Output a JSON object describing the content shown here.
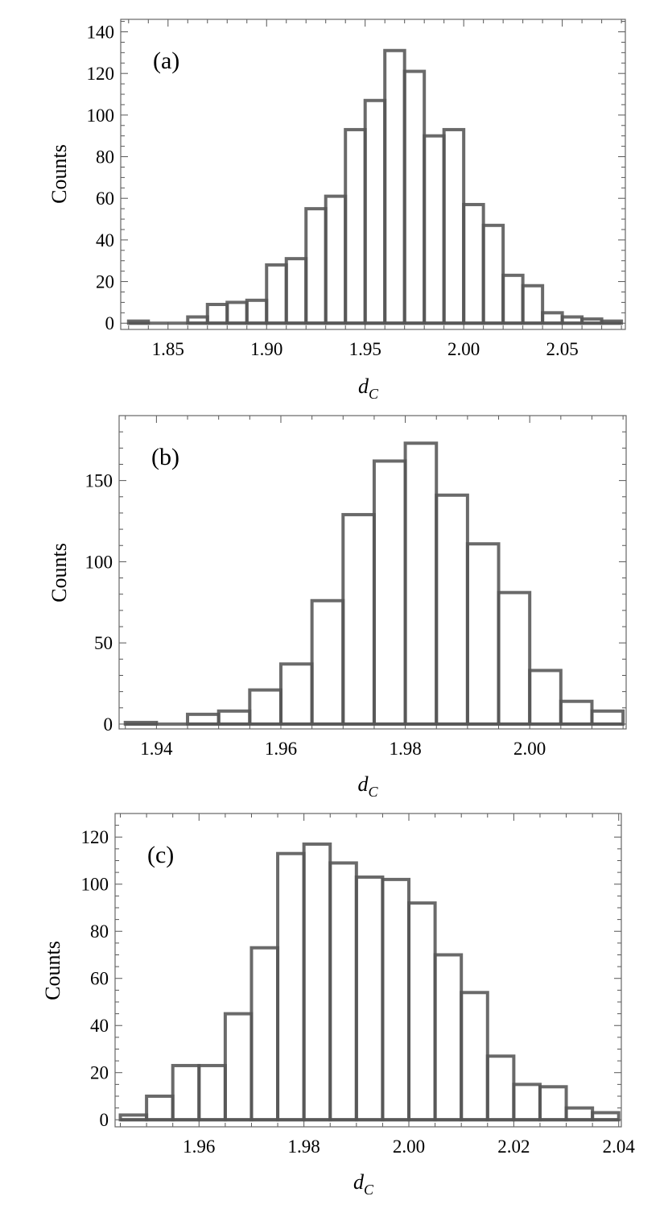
{
  "chart_data": [
    {
      "type": "bar",
      "panel_label": "(a)",
      "ylabel": "Counts",
      "xlabel": "d",
      "xlabel_sub": "C",
      "xlim": [
        1.826,
        2.082
      ],
      "ylim": [
        -3,
        146
      ],
      "xticks": [
        1.85,
        1.9,
        1.95,
        2.0,
        2.05
      ],
      "xtick_labels": [
        "1.85",
        "1.90",
        "1.95",
        "2.00",
        "2.05"
      ],
      "xtick_minor_step": 0.01,
      "yticks": [
        0,
        20,
        40,
        60,
        80,
        100,
        120,
        140
      ],
      "ytick_labels": [
        "0",
        "20",
        "40",
        "60",
        "80",
        "100",
        "120",
        "140"
      ],
      "ytick_minor_step": 5,
      "bin_width": 0.01,
      "bins": [
        {
          "start": 1.83,
          "value": 1
        },
        {
          "start": 1.86,
          "value": 3
        },
        {
          "start": 1.87,
          "value": 9
        },
        {
          "start": 1.88,
          "value": 10
        },
        {
          "start": 1.89,
          "value": 11
        },
        {
          "start": 1.9,
          "value": 28
        },
        {
          "start": 1.91,
          "value": 31
        },
        {
          "start": 1.92,
          "value": 55
        },
        {
          "start": 1.93,
          "value": 61
        },
        {
          "start": 1.94,
          "value": 93
        },
        {
          "start": 1.95,
          "value": 107
        },
        {
          "start": 1.96,
          "value": 131
        },
        {
          "start": 1.97,
          "value": 121
        },
        {
          "start": 1.98,
          "value": 90
        },
        {
          "start": 1.99,
          "value": 93
        },
        {
          "start": 2.0,
          "value": 57
        },
        {
          "start": 2.01,
          "value": 47
        },
        {
          "start": 2.02,
          "value": 23
        },
        {
          "start": 2.03,
          "value": 18
        },
        {
          "start": 2.04,
          "value": 5
        },
        {
          "start": 2.05,
          "value": 3
        },
        {
          "start": 2.06,
          "value": 2
        },
        {
          "start": 2.07,
          "value": 1
        }
      ]
    },
    {
      "type": "bar",
      "panel_label": "(b)",
      "ylabel": "Counts",
      "xlabel": "d",
      "xlabel_sub": "C",
      "xlim": [
        1.934,
        2.0155
      ],
      "ylim": [
        -3,
        190
      ],
      "xticks": [
        1.94,
        1.96,
        1.98,
        2.0
      ],
      "xtick_labels": [
        "1.94",
        "1.96",
        "1.98",
        "2.00"
      ],
      "xtick_minor_step": 0.005,
      "yticks": [
        0,
        50,
        100,
        150
      ],
      "ytick_labels": [
        "0",
        "50",
        "100",
        "150"
      ],
      "ytick_minor_step": 10,
      "bin_width": 0.005,
      "bins": [
        {
          "start": 1.935,
          "value": 1
        },
        {
          "start": 1.945,
          "value": 6
        },
        {
          "start": 1.95,
          "value": 8
        },
        {
          "start": 1.955,
          "value": 21
        },
        {
          "start": 1.96,
          "value": 37
        },
        {
          "start": 1.965,
          "value": 76
        },
        {
          "start": 1.97,
          "value": 129
        },
        {
          "start": 1.975,
          "value": 162
        },
        {
          "start": 1.98,
          "value": 173
        },
        {
          "start": 1.985,
          "value": 141
        },
        {
          "start": 1.99,
          "value": 111
        },
        {
          "start": 1.995,
          "value": 81
        },
        {
          "start": 2.0,
          "value": 33
        },
        {
          "start": 2.005,
          "value": 14
        },
        {
          "start": 2.01,
          "value": 8
        }
      ]
    },
    {
      "type": "bar",
      "panel_label": "(c)",
      "ylabel": "Counts",
      "xlabel": "d",
      "xlabel_sub": "C",
      "xlim": [
        1.944,
        2.0405
      ],
      "ylim": [
        -3,
        130
      ],
      "xticks": [
        1.96,
        1.98,
        2.0,
        2.02,
        2.04
      ],
      "xtick_labels": [
        "1.96",
        "1.98",
        "2.00",
        "2.02",
        "2.04"
      ],
      "xtick_minor_step": 0.005,
      "yticks": [
        0,
        20,
        40,
        60,
        80,
        100,
        120
      ],
      "ytick_labels": [
        "0",
        "20",
        "40",
        "60",
        "80",
        "100",
        "120"
      ],
      "ytick_minor_step": 5,
      "bin_width": 0.005,
      "bins": [
        {
          "start": 1.945,
          "value": 2
        },
        {
          "start": 1.95,
          "value": 10
        },
        {
          "start": 1.955,
          "value": 23
        },
        {
          "start": 1.96,
          "value": 23
        },
        {
          "start": 1.965,
          "value": 45
        },
        {
          "start": 1.97,
          "value": 73
        },
        {
          "start": 1.975,
          "value": 113
        },
        {
          "start": 1.98,
          "value": 117
        },
        {
          "start": 1.985,
          "value": 109
        },
        {
          "start": 1.99,
          "value": 103
        },
        {
          "start": 1.995,
          "value": 102
        },
        {
          "start": 2.0,
          "value": 92
        },
        {
          "start": 2.005,
          "value": 70
        },
        {
          "start": 2.01,
          "value": 54
        },
        {
          "start": 2.015,
          "value": 27
        },
        {
          "start": 2.02,
          "value": 15
        },
        {
          "start": 2.025,
          "value": 14
        },
        {
          "start": 2.03,
          "value": 5
        },
        {
          "start": 2.035,
          "value": 3
        }
      ]
    }
  ]
}
